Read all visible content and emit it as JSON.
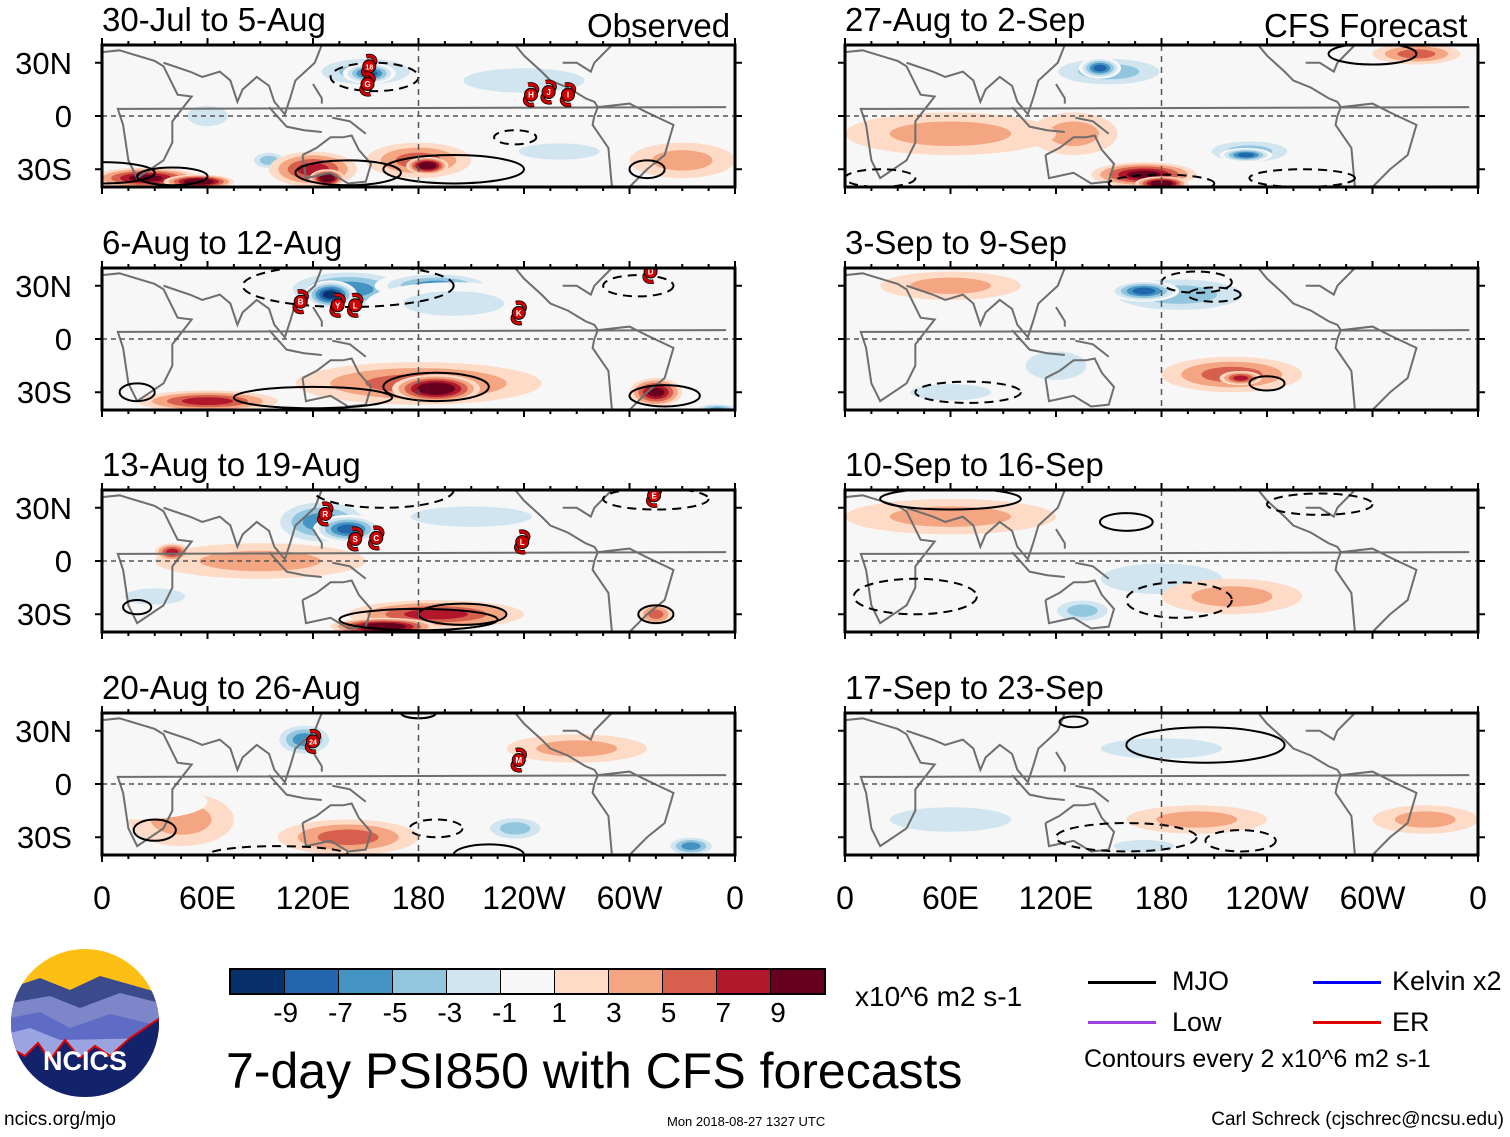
{
  "panels": {
    "observed_label": "Observed",
    "forecast_label": "CFS Forecast",
    "left": [
      {
        "title": "30-Jul to 5-Aug",
        "storms": [
          {
            "id": "18",
            "lon": 152,
            "lat": 28
          },
          {
            "id": "G",
            "lon": 151,
            "lat": 18
          },
          {
            "id": "H",
            "lon": 244,
            "lat": 12
          },
          {
            "id": "J",
            "lon": 254,
            "lat": 13.5
          },
          {
            "id": "I",
            "lon": 265,
            "lat": 12
          }
        ]
      },
      {
        "title": "6-Aug to 12-Aug",
        "storms": [
          {
            "id": "B",
            "lon": 113,
            "lat": 21
          },
          {
            "id": "Y",
            "lon": 134,
            "lat": 19
          },
          {
            "id": "L",
            "lon": 144,
            "lat": 19
          },
          {
            "id": "K",
            "lon": 237,
            "lat": 14.7
          },
          {
            "id": "D",
            "lon": 312,
            "lat": 38
          }
        ]
      },
      {
        "title": "13-Aug to 19-Aug",
        "storms": [
          {
            "id": "R",
            "lon": 127,
            "lat": 26.5
          },
          {
            "id": "S",
            "lon": 144,
            "lat": 12.4
          },
          {
            "id": "C",
            "lon": 156,
            "lat": 13
          },
          {
            "id": "L",
            "lon": 239,
            "lat": 10.7
          },
          {
            "id": "E",
            "lon": 314,
            "lat": 37
          }
        ]
      },
      {
        "title": "20-Aug to 26-Aug",
        "storms": [
          {
            "id": "24",
            "lon": 120,
            "lat": 24
          },
          {
            "id": "M",
            "lon": 237,
            "lat": 13.5
          }
        ]
      }
    ],
    "right": [
      {
        "title": "27-Aug to 2-Sep",
        "storms": []
      },
      {
        "title": "3-Sep to 9-Sep",
        "storms": []
      },
      {
        "title": "10-Sep to 16-Sep",
        "storms": []
      },
      {
        "title": "17-Sep to 23-Sep",
        "storms": []
      }
    ]
  },
  "y_ticks": [
    "30N",
    "0",
    "30S"
  ],
  "x_ticks": [
    "0",
    "60E",
    "120E",
    "180",
    "120W",
    "60W",
    "0"
  ],
  "colorbar": {
    "colors": [
      "#08306b",
      "#2166ac",
      "#4393c3",
      "#92c5de",
      "#d1e5f0",
      "#f7f7f7",
      "#fddbc7",
      "#f4a582",
      "#d6604d",
      "#b2182b",
      "#67001f"
    ],
    "labels": [
      "-9",
      "-7",
      "-5",
      "-3",
      "-1",
      "1",
      "3",
      "5",
      "7",
      "9"
    ],
    "units": "x10^6 m2 s-1"
  },
  "legend": {
    "mjo": {
      "label": "MJO",
      "color": "#000000"
    },
    "kelvin": {
      "label": "Kelvin x2",
      "color": "#0000ff"
    },
    "low": {
      "label": "Low",
      "color": "#a040e0"
    },
    "er": {
      "label": "ER",
      "color": "#e00000"
    },
    "contours_note": "Contours every 2 x10^6 m2 s-1"
  },
  "logo": {
    "text": "NCICS"
  },
  "main_title": "7-day PSI850 with CFS forecasts",
  "footer": {
    "url": "ncics.org/mjo",
    "timestamp": "Mon 2018-08-27 1327 UTC",
    "credit": "Carl Schreck (cjschrec@ncsu.edu)"
  }
}
